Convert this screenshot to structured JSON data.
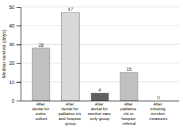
{
  "chart_data": {
    "type": "bar",
    "categories": [
      "After\ndenial for\nentire\ncohort",
      "After\ndenial for\npalliative c/s\nand hospice\ngroup",
      "After\ndenial for\ncomfort care\nonly group",
      "After\npalliative\nc/s or\nhospice\nreferral",
      "After\ninitiating\ncomfort\nmeasures"
    ],
    "values": [
      28,
      47,
      4,
      15,
      0
    ],
    "colors": [
      "#c0c0c0",
      "#d8d8d8",
      "#606060",
      "#c0c0c0",
      "#c8c8c8"
    ],
    "ylabel": "Median survival (days)",
    "ylim": [
      0,
      50
    ],
    "yticks": [
      0,
      10,
      20,
      30,
      40,
      50
    ],
    "grid": true,
    "data_labels": true
  }
}
